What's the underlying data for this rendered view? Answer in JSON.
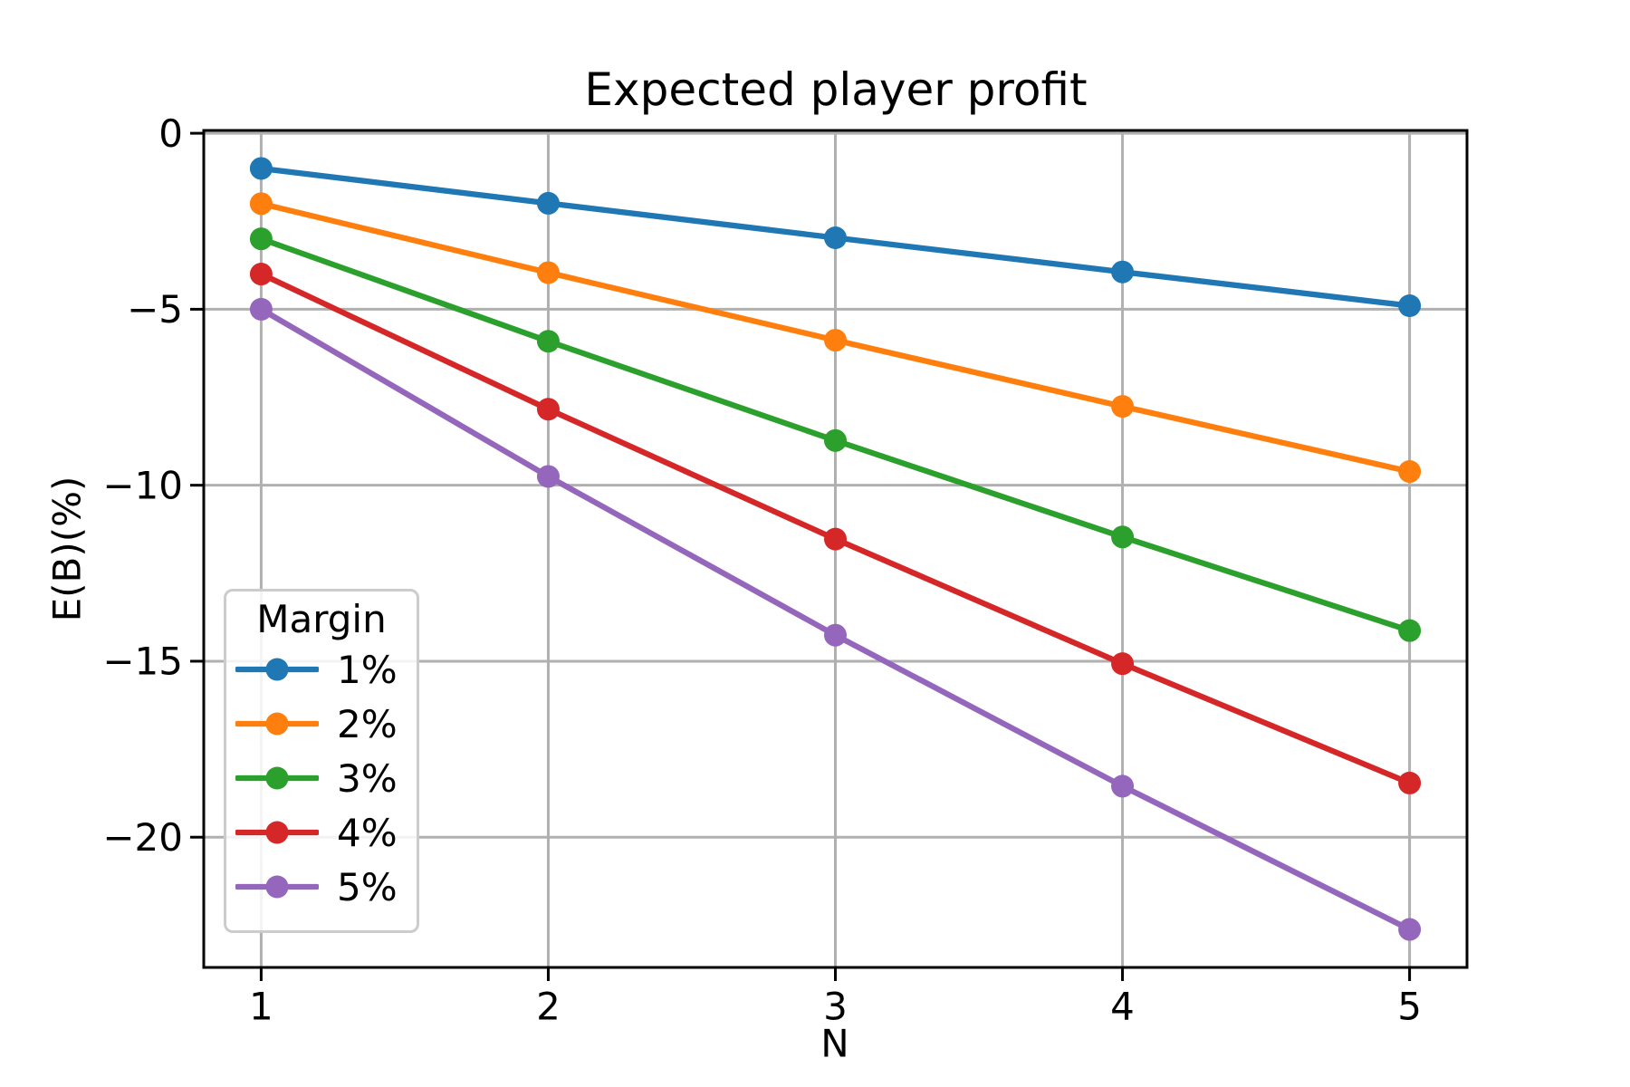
{
  "chart_data": {
    "type": "line",
    "title": "Expected player profit",
    "xlabel": "N",
    "ylabel": "E(B)(%)",
    "x": [
      1,
      2,
      3,
      4,
      5
    ],
    "series": [
      {
        "name": "1%",
        "color": "#1f77b4",
        "values": [
          -1.0,
          -1.99,
          -2.97,
          -3.94,
          -4.9
        ]
      },
      {
        "name": "2%",
        "color": "#ff7f0e",
        "values": [
          -2.0,
          -3.96,
          -5.88,
          -7.76,
          -9.61
        ]
      },
      {
        "name": "3%",
        "color": "#2ca02c",
        "values": [
          -3.0,
          -5.91,
          -8.73,
          -11.47,
          -14.13
        ]
      },
      {
        "name": "4%",
        "color": "#d62728",
        "values": [
          -4.0,
          -7.84,
          -11.53,
          -15.07,
          -18.46
        ]
      },
      {
        "name": "5%",
        "color": "#9467bd",
        "values": [
          -5.0,
          -9.75,
          -14.26,
          -18.55,
          -22.62
        ]
      }
    ],
    "legend": {
      "title": "Margin",
      "position": "lower left"
    },
    "xticks": {
      "values": [
        1,
        2,
        3,
        4,
        5
      ],
      "labels": [
        "1",
        "2",
        "3",
        "4",
        "5"
      ]
    },
    "yticks": {
      "values": [
        0,
        -5,
        -10,
        -15,
        -20
      ],
      "labels": [
        "0",
        "−5",
        "−10",
        "−15",
        "−20"
      ]
    },
    "xlim": [
      0.8,
      5.2
    ],
    "ylim": [
      -23.7,
      0.08
    ],
    "grid": true,
    "colors": {
      "grid": "#b0b0b0",
      "spine": "#000000",
      "background": "#ffffff",
      "legend_edge": "#cccccc",
      "text": "#000000"
    }
  }
}
